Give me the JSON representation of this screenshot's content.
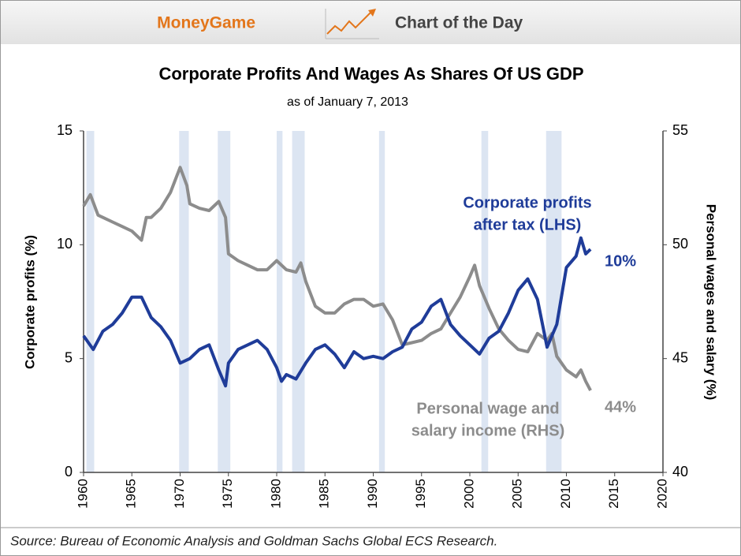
{
  "header": {
    "brand": "MoneyGame",
    "label": "Chart of the Day"
  },
  "chart_data": {
    "type": "line",
    "title": "Corporate Profits And Wages As Shares Of US GDP",
    "subtitle": "as of January 7, 2013",
    "y_label": "Corporate profits (%)",
    "y2_label": "Personal wages and salary (%)",
    "source": "Source: Bureau of Economic Analysis and Goldman Sachs Global ECS Research.",
    "xlim": [
      1960,
      2020
    ],
    "xticks": [
      1960,
      1965,
      1970,
      1975,
      1980,
      1985,
      1990,
      1995,
      2000,
      2005,
      2010,
      2015,
      2020
    ],
    "ylim": [
      0,
      15
    ],
    "yticks": [
      0,
      5,
      10,
      15
    ],
    "y2lim": [
      40,
      55
    ],
    "y2ticks": [
      40,
      45,
      50,
      55
    ],
    "recession_color": "#dce5f2",
    "recessions": [
      [
        1960.3,
        1961.1
      ],
      [
        1969.9,
        1970.9
      ],
      [
        1973.9,
        1975.2
      ],
      [
        1980.0,
        1980.6
      ],
      [
        1981.6,
        1982.9
      ],
      [
        1990.6,
        1991.2
      ],
      [
        2001.2,
        2001.9
      ],
      [
        2007.9,
        2009.5
      ]
    ],
    "series": [
      {
        "name": "Personal wage and salary income (RHS)",
        "color": "#8c8c8c",
        "axis": "y2",
        "x": [
          1960,
          1960.7,
          1961.5,
          1962,
          1963,
          1964,
          1965,
          1966,
          1966.5,
          1967,
          1968,
          1969,
          1970,
          1970.7,
          1971,
          1972,
          1973,
          1974,
          1974.7,
          1975,
          1976,
          1977,
          1978,
          1979,
          1980,
          1981,
          1982,
          1982.5,
          1983,
          1984,
          1985,
          1986,
          1987,
          1988,
          1989,
          1990,
          1991,
          1992,
          1993,
          1994,
          1995,
          1996,
          1997,
          1998,
          1999,
          2000,
          2000.5,
          2001,
          2002,
          2003,
          2004,
          2005,
          2006,
          2007,
          2008,
          2008.5,
          2009,
          2010,
          2011,
          2011.5,
          2012,
          2012.5
        ],
        "values": [
          51.7,
          52.2,
          51.3,
          51.2,
          51.0,
          50.8,
          50.6,
          50.2,
          51.2,
          51.2,
          51.6,
          52.3,
          53.4,
          52.6,
          51.8,
          51.6,
          51.5,
          51.9,
          51.2,
          49.6,
          49.3,
          49.1,
          48.9,
          48.9,
          49.3,
          48.9,
          48.8,
          49.2,
          48.4,
          47.3,
          47.0,
          47.0,
          47.4,
          47.6,
          47.6,
          47.3,
          47.4,
          46.7,
          45.6,
          45.7,
          45.8,
          46.1,
          46.3,
          47.0,
          47.7,
          48.6,
          49.1,
          48.2,
          47.2,
          46.3,
          45.8,
          45.4,
          45.3,
          46.1,
          45.8,
          46.1,
          45.1,
          44.5,
          44.2,
          44.5,
          44.0,
          43.6
        ]
      },
      {
        "name": "Corporate profits after tax (LHS)",
        "color": "#1f3c99",
        "axis": "y",
        "x": [
          1960,
          1961,
          1962,
          1963,
          1964,
          1965,
          1966,
          1967,
          1968,
          1969,
          1970,
          1971,
          1972,
          1973,
          1974,
          1974.7,
          1975,
          1976,
          1977,
          1978,
          1979,
          1980,
          1980.5,
          1981,
          1982,
          1983,
          1984,
          1985,
          1986,
          1987,
          1988,
          1989,
          1990,
          1991,
          1992,
          1993,
          1994,
          1995,
          1996,
          1997,
          1998,
          1999,
          2000,
          2001,
          2002,
          2003,
          2004,
          2005,
          2006,
          2007,
          2008,
          2009,
          2010,
          2011,
          2011.5,
          2012,
          2012.5
        ],
        "values": [
          6.0,
          5.4,
          6.2,
          6.5,
          7.0,
          7.7,
          7.7,
          6.8,
          6.4,
          5.8,
          4.8,
          5.0,
          5.4,
          5.6,
          4.5,
          3.8,
          4.8,
          5.4,
          5.6,
          5.8,
          5.4,
          4.6,
          4.0,
          4.3,
          4.1,
          4.8,
          5.4,
          5.6,
          5.2,
          4.6,
          5.3,
          5.0,
          5.1,
          5.0,
          5.3,
          5.5,
          6.3,
          6.6,
          7.3,
          7.6,
          6.5,
          6.0,
          5.6,
          5.2,
          5.9,
          6.2,
          7.0,
          8.0,
          8.5,
          7.6,
          5.5,
          6.5,
          9.0,
          9.5,
          10.3,
          9.6,
          9.8
        ]
      }
    ],
    "annotations": [
      {
        "text": [
          "Corporate profits",
          "after tax (LHS)"
        ],
        "color": "#1f3c99"
      },
      {
        "text": [
          "10%"
        ],
        "color": "#1f3c99"
      },
      {
        "text": [
          "Personal wage and",
          "salary income (RHS)"
        ],
        "color": "#8c8c8c"
      },
      {
        "text": [
          "44%"
        ],
        "color": "#8c8c8c"
      }
    ]
  }
}
